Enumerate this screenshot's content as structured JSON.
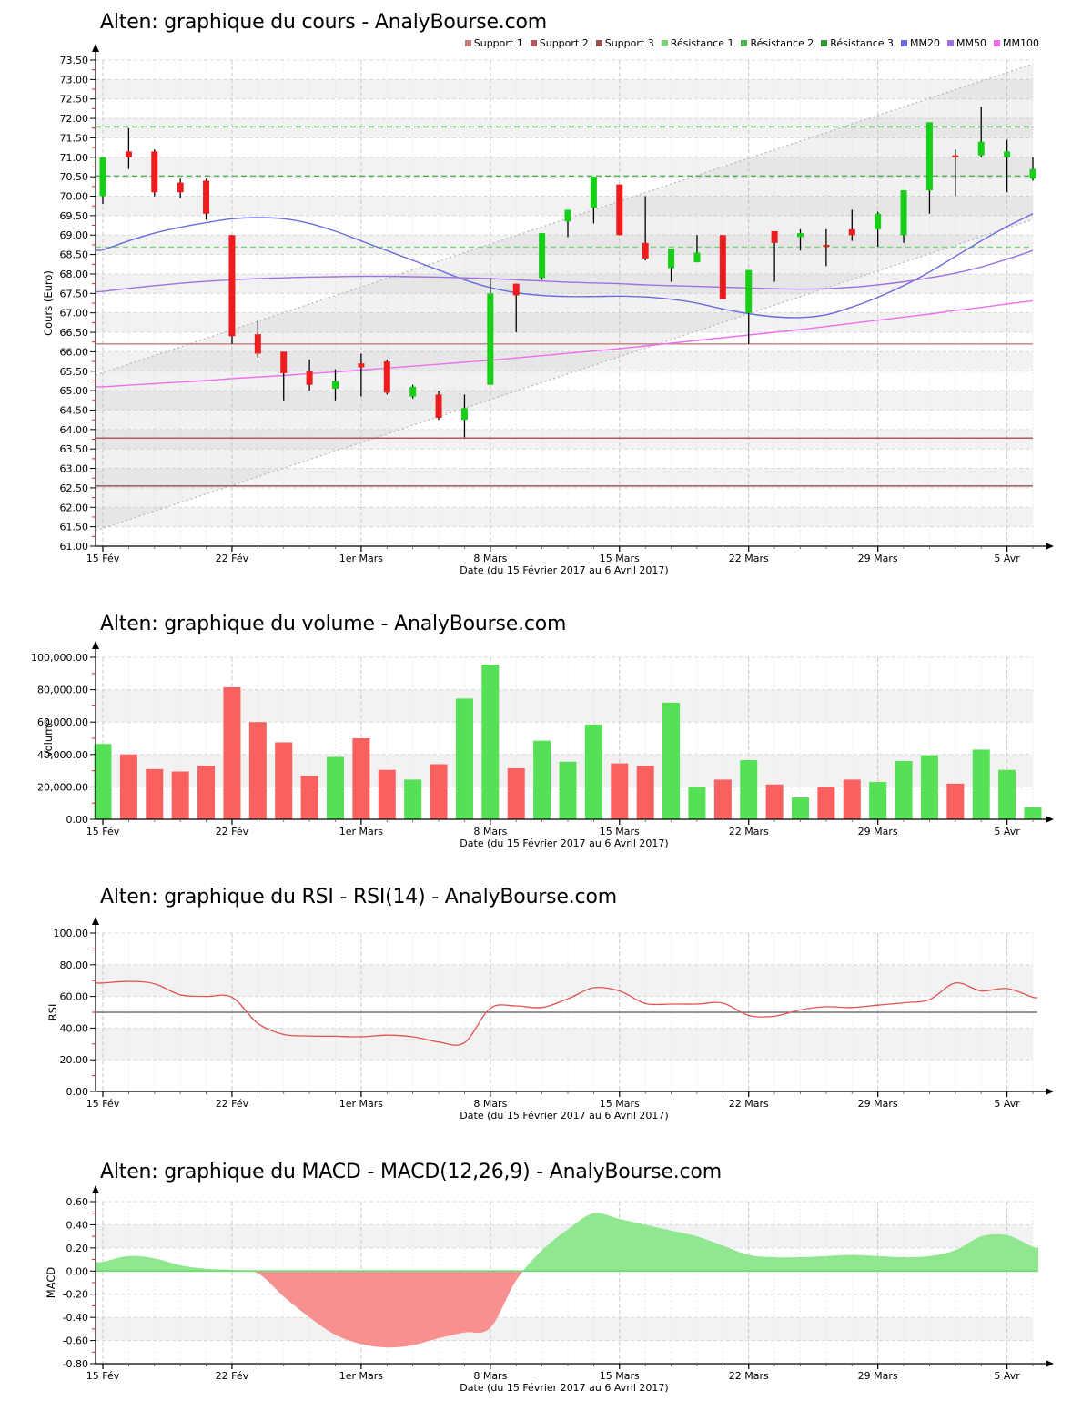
{
  "site_name": "AnalyBourse.com",
  "instrument": "Alten",
  "chart_data": [
    {
      "type": "candlestick",
      "title": "Alten: graphique du cours - AnalyBourse.com",
      "ylabel": "Cours (Euro)",
      "xlabel": "Date (du 15 Février 2017 au 6 Avril 2017)",
      "ylim": [
        61.0,
        73.5
      ],
      "ystep": 0.5,
      "y_tick_labels": [
        "73.50",
        "73.00",
        "72.50",
        "72.00",
        "71.50",
        "71.00",
        "70.50",
        "70.00",
        "69.50",
        "69.00",
        "68.50",
        "68.00",
        "67.50",
        "67.00",
        "66.50",
        "66.00",
        "65.50",
        "65.00",
        "64.50",
        "64.00",
        "63.50",
        "63.00",
        "62.50",
        "62.00",
        "61.50",
        "61.00"
      ],
      "x_tick_labels": [
        "15 Fév",
        "22 Fév",
        "1er Mars",
        "8 Mars",
        "15 Mars",
        "22 Mars",
        "29 Mars",
        "5 Avr"
      ],
      "x_tick_indices": [
        0,
        5,
        10,
        15,
        20,
        25,
        30,
        35
      ],
      "legend_position": "top-right",
      "dates": [
        "15 Fév",
        "16 Fév",
        "17 Fév",
        "20 Fév",
        "21 Fév",
        "22 Fév",
        "23 Fév",
        "24 Fév",
        "27 Fév",
        "28 Fév",
        "1er Mars",
        "2 Mars",
        "3 Mars",
        "6 Mars",
        "7 Mars",
        "8 Mars",
        "9 Mars",
        "10 Mars",
        "13 Mars",
        "14 Mars",
        "15 Mars",
        "16 Mars",
        "17 Mars",
        "20 Mars",
        "21 Mars",
        "22 Mars",
        "23 Mars",
        "24 Mars",
        "27 Mars",
        "28 Mars",
        "29 Mars",
        "30 Mars",
        "31 Mars",
        "3 Avr",
        "4 Avr",
        "5 Avr",
        "6 Avr"
      ],
      "ohlc": [
        [
          70.0,
          71.0,
          69.8,
          71.0
        ],
        [
          71.15,
          71.75,
          70.7,
          71.0
        ],
        [
          71.15,
          71.2,
          70.0,
          70.1
        ],
        [
          70.35,
          70.45,
          69.95,
          70.1
        ],
        [
          70.4,
          70.45,
          69.4,
          69.55
        ],
        [
          69.0,
          69.0,
          66.2,
          66.4
        ],
        [
          66.45,
          66.8,
          65.85,
          65.95
        ],
        [
          66.0,
          66.0,
          64.75,
          65.45
        ],
        [
          65.5,
          65.8,
          65.0,
          65.15
        ],
        [
          65.05,
          65.55,
          64.75,
          65.25
        ],
        [
          65.7,
          65.95,
          64.85,
          65.6
        ],
        [
          65.75,
          65.8,
          64.9,
          64.95
        ],
        [
          64.85,
          65.15,
          64.8,
          65.1
        ],
        [
          64.9,
          65.0,
          64.25,
          64.3
        ],
        [
          64.25,
          64.9,
          63.8,
          64.55
        ],
        [
          65.15,
          67.9,
          65.15,
          67.5
        ],
        [
          67.75,
          67.75,
          66.5,
          67.45
        ],
        [
          67.9,
          69.05,
          67.85,
          69.05
        ],
        [
          69.35,
          69.65,
          68.95,
          69.65
        ],
        [
          69.7,
          70.5,
          69.3,
          70.5
        ],
        [
          70.3,
          70.3,
          69.0,
          69.0
        ],
        [
          68.8,
          70.0,
          68.35,
          68.4
        ],
        [
          68.15,
          68.65,
          67.8,
          68.65
        ],
        [
          68.3,
          69.0,
          68.3,
          68.55
        ],
        [
          69.0,
          69.0,
          67.35,
          67.35
        ],
        [
          67.0,
          68.1,
          66.2,
          68.1
        ],
        [
          69.1,
          69.1,
          67.8,
          68.8
        ],
        [
          68.95,
          69.15,
          68.6,
          69.05
        ],
        [
          68.75,
          69.15,
          68.2,
          68.7
        ],
        [
          69.15,
          69.65,
          68.85,
          69.0
        ],
        [
          69.15,
          69.6,
          68.7,
          69.55
        ],
        [
          69.0,
          70.15,
          68.8,
          70.15
        ],
        [
          70.15,
          71.9,
          69.55,
          71.9
        ],
        [
          71.05,
          71.2,
          70.0,
          71.0
        ],
        [
          71.05,
          72.3,
          71.0,
          71.4
        ],
        [
          71.0,
          71.45,
          70.1,
          71.15
        ],
        [
          70.45,
          71.0,
          70.4,
          70.7
        ]
      ],
      "colors": {
        "up": "#17cf17",
        "down": "#ee1c1c",
        "wick": "#000000"
      },
      "overlays": {
        "support": [
          {
            "name": "Support 1",
            "value": 66.2,
            "color": "#c67c7c"
          },
          {
            "name": "Support 2",
            "value": 63.78,
            "color": "#b05b5b"
          },
          {
            "name": "Support 3",
            "value": 62.55,
            "color": "#9a4f4f"
          }
        ],
        "resistance": [
          {
            "name": "Résistance 1",
            "value": 68.69,
            "color": "#7dd07d"
          },
          {
            "name": "Résistance 2",
            "value": 70.52,
            "color": "#4fb24f"
          },
          {
            "name": "Résistance 3",
            "value": 71.78,
            "color": "#2f9a2f"
          }
        ],
        "moving_averages": [
          {
            "name": "MM20",
            "color": "#6b6bdd",
            "values": [
              68.62,
              68.85,
              69.05,
              69.2,
              69.32,
              69.42,
              69.45,
              69.42,
              69.3,
              69.1,
              68.85,
              68.6,
              68.35,
              68.1,
              67.85,
              67.65,
              67.52,
              67.45,
              67.42,
              67.42,
              67.43,
              67.41,
              67.35,
              67.25,
              67.1,
              66.98,
              66.9,
              66.88,
              66.95,
              67.15,
              67.4,
              67.7,
              68.05,
              68.45,
              68.85,
              69.22,
              69.55
            ]
          },
          {
            "name": "MM50",
            "color": "#a071e0",
            "values": [
              67.55,
              67.63,
              67.7,
              67.76,
              67.81,
              67.85,
              67.88,
              67.9,
              67.92,
              67.93,
              67.94,
              67.94,
              67.93,
              67.92,
              67.9,
              67.88,
              67.85,
              67.82,
              67.79,
              67.77,
              67.75,
              67.72,
              67.7,
              67.68,
              67.66,
              67.64,
              67.62,
              67.61,
              67.62,
              67.66,
              67.72,
              67.8,
              67.9,
              68.02,
              68.18,
              68.38,
              68.6
            ]
          },
          {
            "name": "MM100",
            "color": "#f06df0",
            "values": [
              65.1,
              65.14,
              65.18,
              65.22,
              65.26,
              65.31,
              65.35,
              65.39,
              65.44,
              65.48,
              65.53,
              65.58,
              65.63,
              65.68,
              65.73,
              65.78,
              65.84,
              65.9,
              65.96,
              66.02,
              66.08,
              66.15,
              66.22,
              66.29,
              66.36,
              66.43,
              66.5,
              66.57,
              66.65,
              66.73,
              66.81,
              66.89,
              66.97,
              67.06,
              67.14,
              67.23,
              67.31
            ]
          }
        ],
        "trend_channel": {
          "upper_price_left_right": [
            65.4,
            73.4
          ],
          "lower_price_left_right": [
            61.4,
            69.4
          ],
          "line_color": "#b5b5b5",
          "fill_color": "rgba(170,170,170,0.16)"
        }
      }
    },
    {
      "type": "bar",
      "title": "Alten: graphique du volume - AnalyBourse.com",
      "ylabel": "Volume",
      "xlabel": "Date (du 15 Février 2017 au 6 Avril 2017)",
      "ylim": [
        0,
        100000
      ],
      "ystep": 20000,
      "y_tick_labels": [
        "100,000.00",
        "80,000.00",
        "60,000.00",
        "40,000.00",
        "20,000.00",
        "0.00"
      ],
      "x_tick_labels": [
        "15 Fév",
        "22 Fév",
        "1er Mars",
        "8 Mars",
        "15 Mars",
        "22 Mars",
        "29 Mars",
        "5 Avr"
      ],
      "x_tick_indices": [
        0,
        5,
        10,
        15,
        20,
        25,
        30,
        35
      ],
      "values": [
        46500,
        40000,
        31000,
        29500,
        33000,
        81500,
        60000,
        47500,
        27000,
        38500,
        50000,
        30500,
        24500,
        34000,
        74500,
        95500,
        31500,
        48500,
        35500,
        58500,
        34500,
        33000,
        72000,
        20000,
        24500,
        36500,
        21500,
        13500,
        20000,
        24500,
        23000,
        36000,
        39500,
        22000,
        43000,
        30500,
        7500
      ],
      "directions": [
        "up",
        "down",
        "down",
        "down",
        "down",
        "down",
        "down",
        "down",
        "down",
        "up",
        "down",
        "down",
        "up",
        "down",
        "up",
        "up",
        "down",
        "up",
        "up",
        "up",
        "down",
        "down",
        "up",
        "up",
        "down",
        "up",
        "down",
        "up",
        "down",
        "down",
        "up",
        "up",
        "up",
        "down",
        "up",
        "up",
        "up"
      ],
      "colors": {
        "up": "#56e056",
        "down": "#f96060"
      }
    },
    {
      "type": "line",
      "title": "Alten: graphique du RSI - RSI(14) - AnalyBourse.com",
      "ylabel": "RSI",
      "xlabel": "Date (du 15 Février 2017 au 6 Avril 2017)",
      "ylim": [
        0,
        100
      ],
      "ystep": 20,
      "y_tick_labels": [
        "100.00",
        "80.00",
        "60.00",
        "40.00",
        "20.00",
        "0.00"
      ],
      "x_tick_labels": [
        "15 Fév",
        "22 Fév",
        "1er Mars",
        "8 Mars",
        "15 Mars",
        "22 Mars",
        "29 Mars",
        "5 Avr"
      ],
      "x_tick_indices": [
        0,
        5,
        10,
        15,
        20,
        25,
        30,
        35
      ],
      "reference_line": {
        "value": 50,
        "color": "#555555"
      },
      "series": [
        {
          "name": "RSI(14)",
          "color": "#e25252",
          "values": [
            68.5,
            69.5,
            68.0,
            61.0,
            60.0,
            59.5,
            43.0,
            36.0,
            35.0,
            34.8,
            34.5,
            35.5,
            34.5,
            31.2,
            30.8,
            52.5,
            54.0,
            53.0,
            58.5,
            65.5,
            63.5,
            55.5,
            55.2,
            55.2,
            55.8,
            48.0,
            47.5,
            51.5,
            53.5,
            53.0,
            54.5,
            56.0,
            58.0,
            68.5,
            63.5,
            65.0,
            59.5
          ]
        }
      ]
    },
    {
      "type": "area",
      "title": "Alten: graphique du MACD - MACD(12,26,9) - AnalyBourse.com",
      "ylabel": "MACD",
      "xlabel": "Date (du 15 Février 2017 au 6 Avril 2017)",
      "ylim": [
        -0.8,
        0.6
      ],
      "ystep": 0.2,
      "y_tick_labels": [
        "0.60",
        "0.40",
        "0.20",
        "0.00",
        "-0.20",
        "-0.40",
        "-0.60",
        "-0.80"
      ],
      "x_tick_labels": [
        "15 Fév",
        "22 Fév",
        "1er Mars",
        "8 Mars",
        "15 Mars",
        "22 Mars",
        "29 Mars",
        "5 Avr"
      ],
      "x_tick_indices": [
        0,
        5,
        10,
        15,
        20,
        25,
        30,
        35
      ],
      "values": [
        0.08,
        0.13,
        0.11,
        0.05,
        0.02,
        0.01,
        -0.02,
        -0.22,
        -0.4,
        -0.55,
        -0.63,
        -0.66,
        -0.64,
        -0.58,
        -0.53,
        -0.49,
        -0.08,
        0.18,
        0.36,
        0.5,
        0.45,
        0.4,
        0.35,
        0.3,
        0.22,
        0.14,
        0.12,
        0.12,
        0.13,
        0.14,
        0.13,
        0.12,
        0.13,
        0.18,
        0.3,
        0.31,
        0.21
      ],
      "colors": {
        "positive": "#8fe88f",
        "negative": "#f99090",
        "zero_line": "#70d970"
      }
    }
  ]
}
